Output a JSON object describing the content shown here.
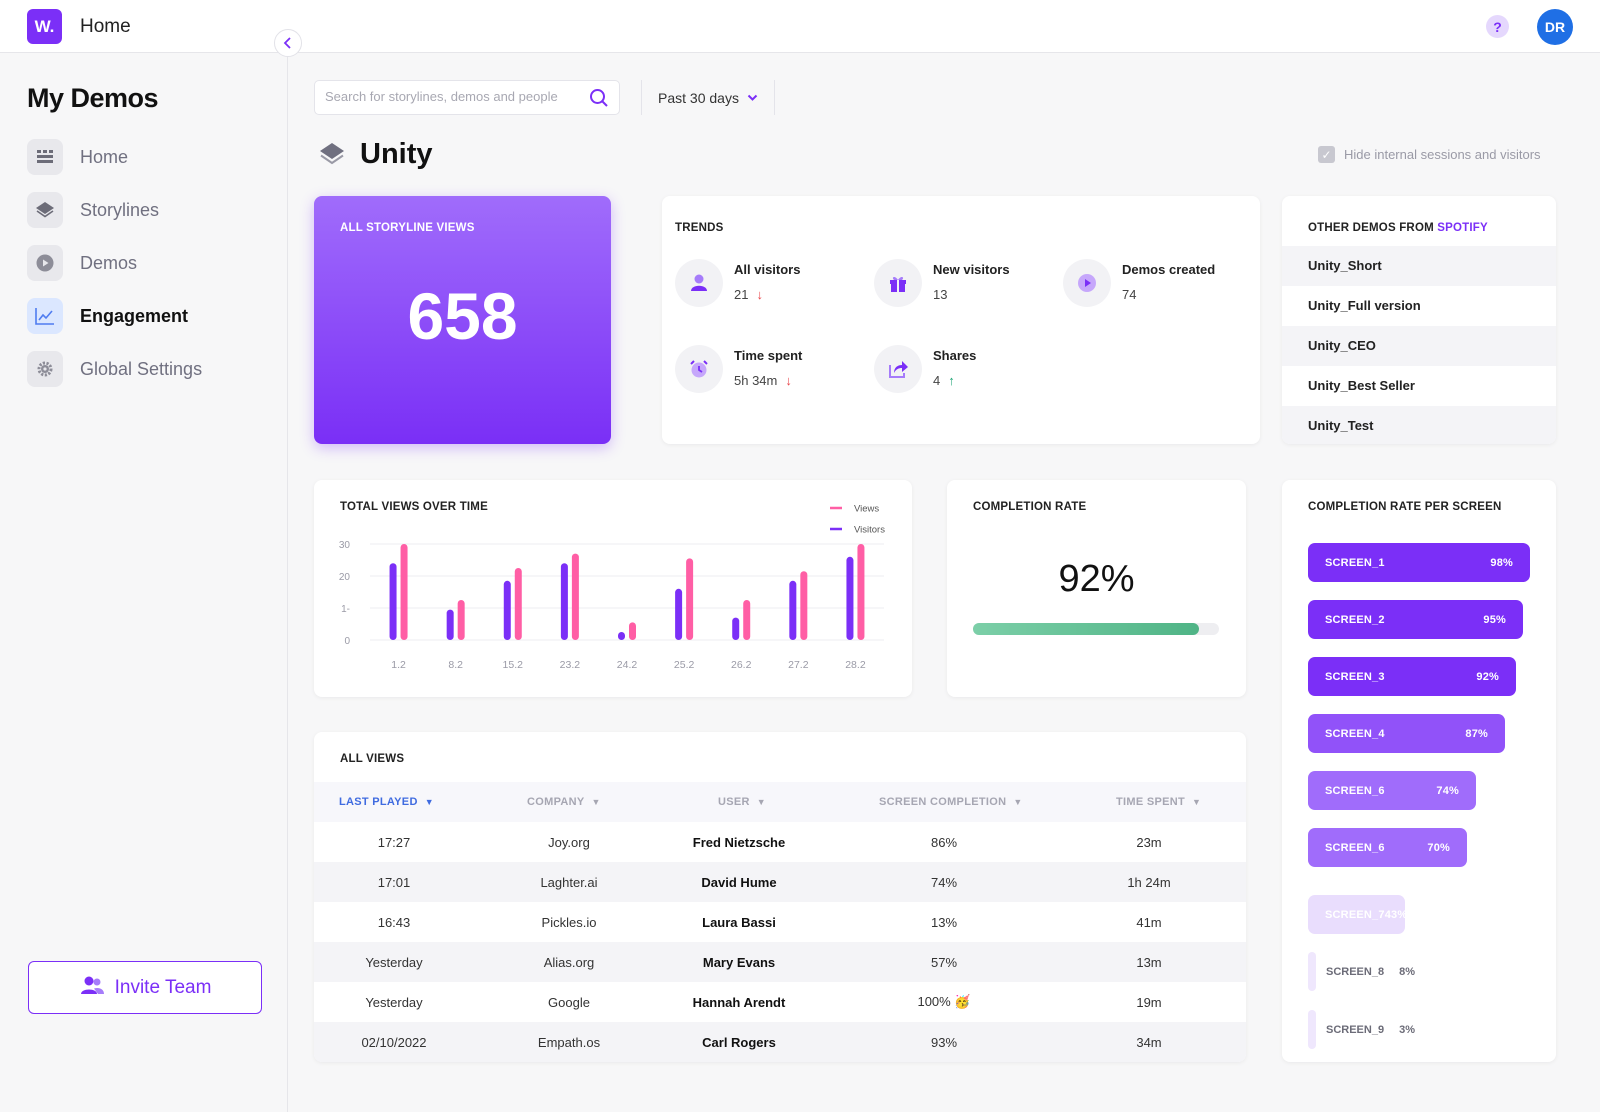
{
  "app": {
    "logo_text": "W.",
    "title": "Home",
    "help_symbol": "?",
    "user_initials": "DR",
    "brand_color": "#7b2ff7"
  },
  "sidebar": {
    "title": "My Demos",
    "collapse_icon": "chevron-left-icon",
    "items": [
      {
        "label": "Home",
        "icon": "grid-icon",
        "active": false
      },
      {
        "label": "Storylines",
        "icon": "layers-icon",
        "active": false
      },
      {
        "label": "Demos",
        "icon": "play-icon",
        "active": false
      },
      {
        "label": "Engagement",
        "icon": "chart-icon",
        "active": true
      },
      {
        "label": "Global Settings",
        "icon": "gear-icon",
        "active": false
      }
    ],
    "invite_label": "Invite Team"
  },
  "toolbar": {
    "search_placeholder": "Search for storylines, demos and people",
    "period_label": "Past 30 days"
  },
  "page": {
    "title": "Unity",
    "hide_internal_label": "Hide internal sessions and visitors",
    "hide_internal_checked": true
  },
  "storyline_views": {
    "title": "ALL STORYLINE VIEWS",
    "value": "658"
  },
  "trends": {
    "title": "TRENDS",
    "items": [
      {
        "label": "All visitors",
        "value": "21",
        "direction": "down",
        "icon": "user-icon"
      },
      {
        "label": "New visitors",
        "value": "13",
        "direction": "",
        "icon": "gift-icon"
      },
      {
        "label": "Demos created",
        "value": "74",
        "direction": "",
        "icon": "play-circle-icon"
      },
      {
        "label": "Time spent",
        "value": "5h 34m",
        "direction": "down",
        "icon": "alarm-icon"
      },
      {
        "label": "Shares",
        "value": "4",
        "direction": "up",
        "icon": "share-icon"
      }
    ]
  },
  "other_demos": {
    "title_prefix": "OTHER DEMOS FROM",
    "brand": "SPOTIFY",
    "items": [
      "Unity_Short",
      "Unity_Full version",
      "Unity_CEO",
      "Unity_Best Seller",
      "Unity_Test"
    ]
  },
  "chart_data": {
    "type": "bar",
    "title": "TOTAL VIEWS OVER TIME",
    "categories": [
      "1.2",
      "8.2",
      "15.2",
      "23.2",
      "24.2",
      "25.2",
      "26.2",
      "27.2",
      "28.2"
    ],
    "series": [
      {
        "name": "Views",
        "color": "#ff5ea5",
        "values": [
          30,
          12.5,
          22.5,
          27,
          5.5,
          25.5,
          12.5,
          21.5,
          30
        ]
      },
      {
        "name": "Visitors",
        "color": "#7b2ff7",
        "values": [
          24,
          9.5,
          18.5,
          24,
          2.5,
          16,
          7,
          18.5,
          26
        ]
      }
    ],
    "y_ticks": [
      "0",
      "1-",
      "20",
      "30"
    ],
    "ylim": [
      0,
      30
    ],
    "grid": true,
    "legend": "top-right"
  },
  "completion": {
    "title": "COMPLETION RATE",
    "value_text": "92%",
    "value": 0.92
  },
  "completion_per_screen": {
    "title": "COMPLETION RATE PER SCREEN",
    "items": [
      {
        "name": "SCREEN_1",
        "pct_text": "98%",
        "pct": 98,
        "color": "#7b2ff7"
      },
      {
        "name": "SCREEN_2",
        "pct_text": "95%",
        "pct": 95,
        "color": "#7b2ff7"
      },
      {
        "name": "SCREEN_3",
        "pct_text": "92%",
        "pct": 92,
        "color": "#7b2ff7"
      },
      {
        "name": "SCREEN_4",
        "pct_text": "87%",
        "pct": 87,
        "color": "#9152f9"
      },
      {
        "name": "SCREEN_6",
        "pct_text": "74%",
        "pct": 74,
        "color": "#a06cfb"
      },
      {
        "name": "SCREEN_6",
        "pct_text": "70%",
        "pct": 70,
        "color": "#a06cfb"
      },
      {
        "name": "SCREEN_7",
        "pct_text": "43%",
        "pct": 43,
        "color": "#e9ddfd"
      },
      {
        "name": "SCREEN_8",
        "pct_text": "8%",
        "pct": 8,
        "color": "#efe7fd"
      },
      {
        "name": "SCREEN_9",
        "pct_text": "3%",
        "pct": 3,
        "color": "#efe7fd"
      }
    ]
  },
  "all_views": {
    "title": "ALL VIEWS",
    "columns": [
      "LAST PLAYED",
      "COMPANY",
      "USER",
      "SCREEN COMPLETION",
      "TIME SPENT"
    ],
    "rows": [
      {
        "last_played": "17:27",
        "company": "Joy.org",
        "user": "Fred Nietzsche",
        "completion": "86%",
        "time": "23m"
      },
      {
        "last_played": "17:01",
        "company": "Laghter.ai",
        "user": "David Hume",
        "completion": "74%",
        "time": "1h 24m"
      },
      {
        "last_played": "16:43",
        "company": "Pickles.io",
        "user": "Laura Bassi",
        "completion": "13%",
        "time": "41m"
      },
      {
        "last_played": "Yesterday",
        "company": "Alias.org",
        "user": "Mary Evans",
        "completion": "57%",
        "time": "13m"
      },
      {
        "last_played": "Yesterday",
        "company": "Google",
        "user": "Hannah Arendt",
        "completion": "100% 🥳",
        "time": "19m"
      },
      {
        "last_played": "02/10/2022",
        "company": "Empath.os",
        "user": "Carl Rogers",
        "completion": "93%",
        "time": "34m"
      }
    ]
  }
}
